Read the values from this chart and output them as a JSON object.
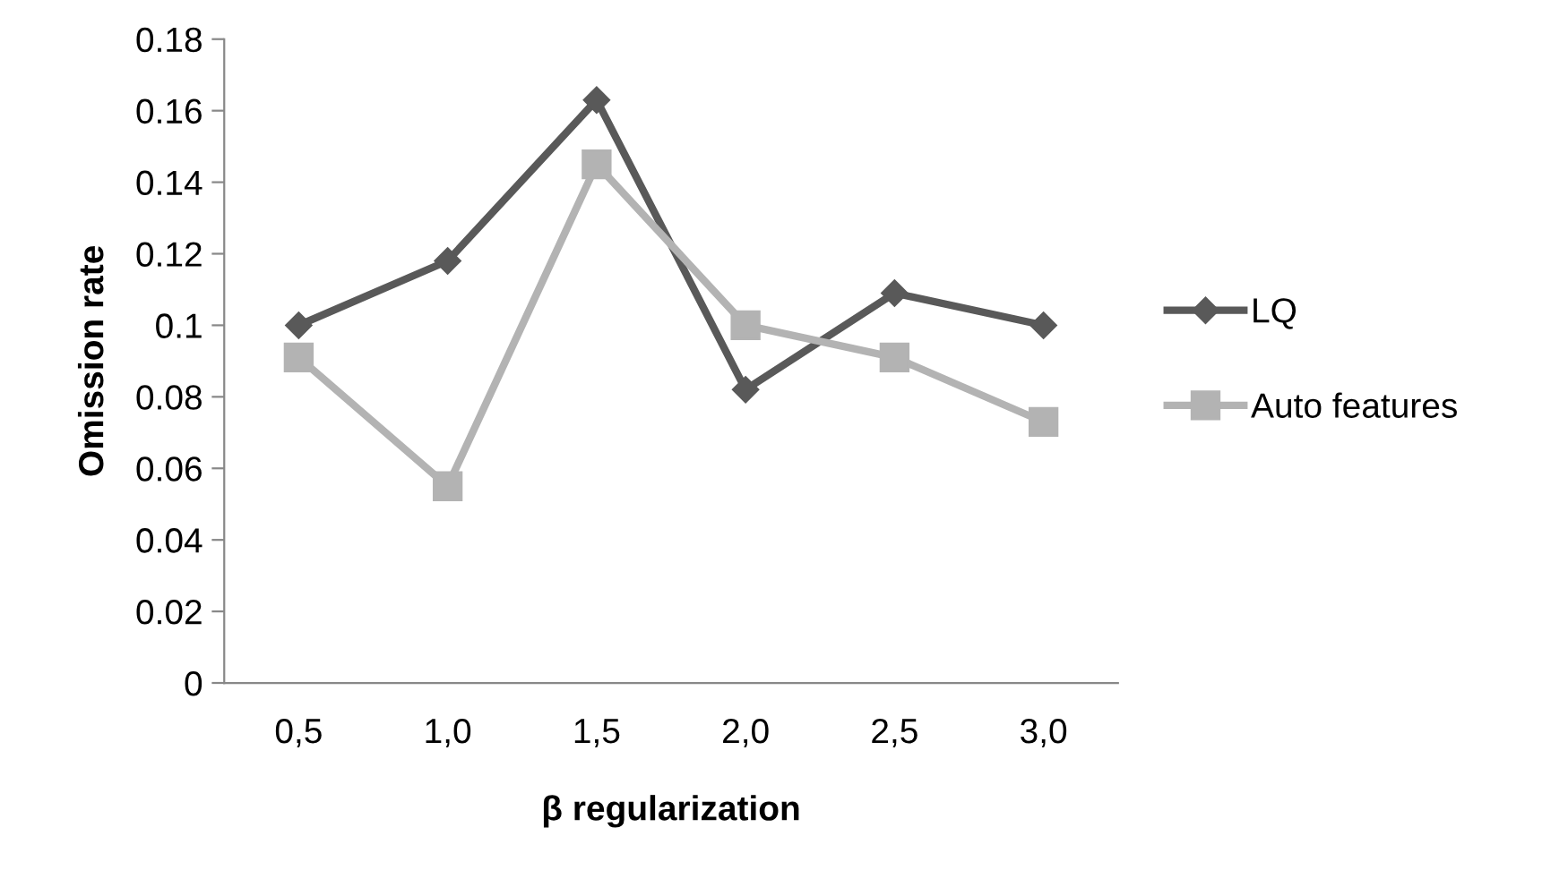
{
  "chart_data": {
    "type": "line",
    "xlabel": "β regularization",
    "ylabel": "Omission rate",
    "categories": [
      "0,5",
      "1,0",
      "1,5",
      "2,0",
      "2,5",
      "3,0"
    ],
    "series": [
      {
        "name": "LQ",
        "color": "#595959",
        "marker": "diamond",
        "values": [
          0.1,
          0.118,
          0.163,
          0.082,
          0.109,
          0.1
        ]
      },
      {
        "name": "Auto features",
        "color": "#b3b3b3",
        "marker": "square",
        "values": [
          0.091,
          0.055,
          0.145,
          0.1,
          0.091,
          0.073
        ]
      }
    ],
    "ylim": [
      0,
      0.18
    ],
    "yticks": [
      0,
      0.02,
      0.04,
      0.06,
      0.08,
      0.1,
      0.12,
      0.14,
      0.16,
      0.18
    ],
    "grid": false,
    "legend": "right",
    "line_style": "solid"
  }
}
